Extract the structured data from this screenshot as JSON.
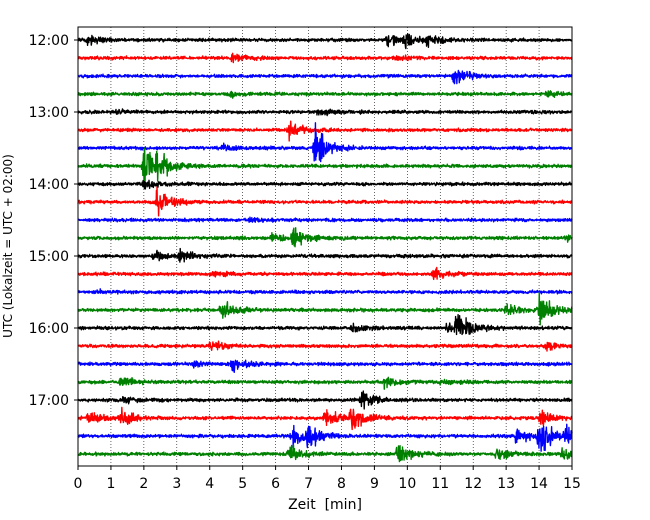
{
  "chart_data": {
    "type": "line",
    "title": "",
    "xlabel": "Zeit  [min]",
    "ylabel": "UTC (Lokalzeit = UTC + 02:00)",
    "xlim": [
      0,
      15
    ],
    "x_ticks": [
      "0",
      "1",
      "2",
      "3",
      "4",
      "5",
      "6",
      "7",
      "8",
      "9",
      "10",
      "11",
      "12",
      "13",
      "14",
      "15"
    ],
    "y_ticks": [
      "12:00",
      "13:00",
      "14:00",
      "15:00",
      "16:00",
      "17:00"
    ],
    "grid": "vertical dotted lines at each minute",
    "legend": "none",
    "trace_interval_minutes": 15,
    "colors": [
      "#000000",
      "#ff0000",
      "#0000ff",
      "#008000"
    ],
    "series": [
      {
        "start": "12:00",
        "color": "#000000",
        "events": [
          {
            "t": 0.3,
            "amp": 0.9
          },
          {
            "t": 9.4,
            "amp": 1.3
          },
          {
            "t": 9.9,
            "amp": 1.0
          },
          {
            "t": 10.6,
            "amp": 1.1
          }
        ]
      },
      {
        "start": "12:15",
        "color": "#ff0000",
        "events": [
          {
            "t": 4.7,
            "amp": 0.8
          },
          {
            "t": 9.6,
            "amp": 0.4
          }
        ]
      },
      {
        "start": "12:30",
        "color": "#0000ff",
        "events": [
          {
            "t": 11.4,
            "amp": 1.6
          }
        ]
      },
      {
        "start": "12:45",
        "color": "#008000",
        "events": [
          {
            "t": 4.6,
            "amp": 0.5
          },
          {
            "t": 14.2,
            "amp": 0.6
          }
        ]
      },
      {
        "start": "13:00",
        "color": "#000000",
        "events": [
          {
            "t": 1.2,
            "amp": 0.4
          },
          {
            "t": 7.3,
            "amp": 0.6
          }
        ]
      },
      {
        "start": "13:15",
        "color": "#ff0000",
        "events": [
          {
            "t": 6.4,
            "amp": 1.5
          }
        ]
      },
      {
        "start": "13:30",
        "color": "#0000ff",
        "events": [
          {
            "t": 7.2,
            "amp": 3.6
          },
          {
            "t": 4.4,
            "amp": 0.6
          }
        ]
      },
      {
        "start": "13:45",
        "color": "#008000",
        "events": [
          {
            "t": 2.0,
            "amp": 3.8
          },
          {
            "t": 2.4,
            "amp": 1.5
          }
        ]
      },
      {
        "start": "14:00",
        "color": "#000000",
        "events": [
          {
            "t": 2.0,
            "amp": 0.8
          }
        ]
      },
      {
        "start": "14:15",
        "color": "#ff0000",
        "events": [
          {
            "t": 2.4,
            "amp": 2.4
          }
        ]
      },
      {
        "start": "14:30",
        "color": "#0000ff",
        "events": [
          {
            "t": 5.2,
            "amp": 0.4
          }
        ]
      },
      {
        "start": "14:45",
        "color": "#008000",
        "events": [
          {
            "t": 6.5,
            "amp": 1.8
          },
          {
            "t": 5.9,
            "amp": 0.7
          },
          {
            "t": 14.8,
            "amp": 0.6
          }
        ]
      },
      {
        "start": "15:00",
        "color": "#000000",
        "events": [
          {
            "t": 2.3,
            "amp": 0.9
          },
          {
            "t": 3.1,
            "amp": 1.0
          }
        ]
      },
      {
        "start": "15:15",
        "color": "#ff0000",
        "events": [
          {
            "t": 4.0,
            "amp": 0.5
          },
          {
            "t": 10.8,
            "amp": 0.9
          }
        ]
      },
      {
        "start": "15:30",
        "color": "#0000ff",
        "events": [
          {
            "t": 0.6,
            "amp": 0.3
          }
        ]
      },
      {
        "start": "15:45",
        "color": "#008000",
        "events": [
          {
            "t": 4.35,
            "amp": 1.8
          },
          {
            "t": 13.0,
            "amp": 1.0
          },
          {
            "t": 14.0,
            "amp": 2.5
          }
        ]
      },
      {
        "start": "16:00",
        "color": "#000000",
        "events": [
          {
            "t": 8.3,
            "amp": 0.9
          },
          {
            "t": 11.5,
            "amp": 2.2
          },
          {
            "t": 11.2,
            "amp": 0.7
          }
        ]
      },
      {
        "start": "16:15",
        "color": "#ff0000",
        "events": [
          {
            "t": 4.0,
            "amp": 1.0
          },
          {
            "t": 14.2,
            "amp": 0.6
          }
        ]
      },
      {
        "start": "16:30",
        "color": "#0000ff",
        "events": [
          {
            "t": 4.7,
            "amp": 1.5
          },
          {
            "t": 3.5,
            "amp": 0.5
          }
        ]
      },
      {
        "start": "16:45",
        "color": "#008000",
        "events": [
          {
            "t": 1.3,
            "amp": 1.0
          },
          {
            "t": 9.3,
            "amp": 1.0
          },
          {
            "t": 11.0,
            "amp": 0.5
          }
        ]
      },
      {
        "start": "17:00",
        "color": "#000000",
        "events": [
          {
            "t": 1.4,
            "amp": 0.6
          },
          {
            "t": 8.6,
            "amp": 1.5
          }
        ]
      },
      {
        "start": "17:15",
        "color": "#ff0000",
        "events": [
          {
            "t": 0.3,
            "amp": 1.2
          },
          {
            "t": 1.3,
            "amp": 1.3
          },
          {
            "t": 7.5,
            "amp": 1.6
          },
          {
            "t": 8.3,
            "amp": 2.6
          },
          {
            "t": 14.0,
            "amp": 1.3
          }
        ]
      },
      {
        "start": "17:30",
        "color": "#0000ff",
        "events": [
          {
            "t": 6.5,
            "amp": 2.2
          },
          {
            "t": 7.0,
            "amp": 1.6
          },
          {
            "t": 13.3,
            "amp": 1.3
          },
          {
            "t": 14.0,
            "amp": 3.0
          },
          {
            "t": 14.8,
            "amp": 1.3
          }
        ]
      },
      {
        "start": "17:45",
        "color": "#008000",
        "events": [
          {
            "t": 6.4,
            "amp": 1.5
          },
          {
            "t": 9.7,
            "amp": 2.0
          },
          {
            "t": 12.7,
            "amp": 1.0
          },
          {
            "t": 14.7,
            "amp": 1.3
          }
        ]
      }
    ]
  }
}
